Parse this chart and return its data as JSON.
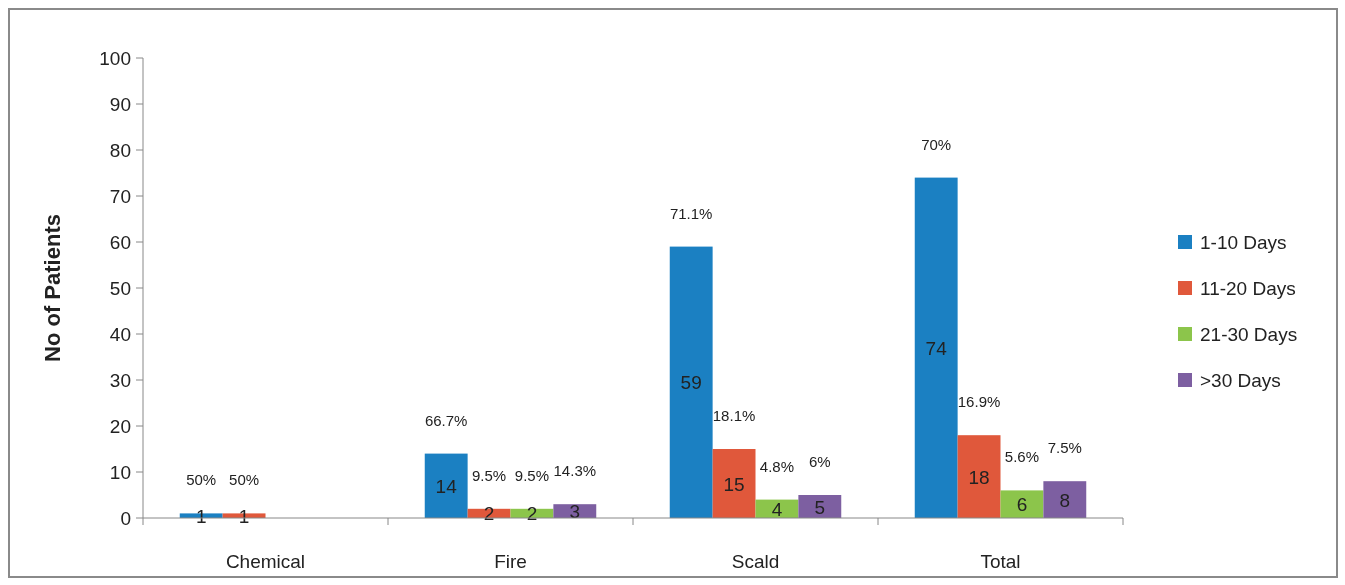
{
  "chart_data": {
    "type": "bar",
    "ylabel": "No of Patients",
    "categories": [
      "Chemical",
      "Fire",
      "Scald",
      "Total"
    ],
    "series": [
      {
        "name": "1-10 Days",
        "color": "#1b80c2",
        "values": [
          1,
          14,
          59,
          74
        ]
      },
      {
        "name": "11-20 Days",
        "color": "#e0583b",
        "values": [
          1,
          2,
          15,
          18
        ]
      },
      {
        "name": "21-30 Days",
        "color": "#8cc54b",
        "values": [
          null,
          2,
          4,
          6
        ]
      },
      {
        "name": ">30 Days",
        "color": "#7d5fa1",
        "values": [
          null,
          3,
          5,
          8
        ]
      }
    ],
    "ylim": [
      0,
      100
    ],
    "yticks": [
      0,
      10,
      20,
      30,
      40,
      50,
      60,
      70,
      80,
      90,
      100
    ],
    "grid": false,
    "legend": "right",
    "data_labels": true,
    "annotations": [
      "50%",
      "50%",
      "66.7%",
      "9.5%",
      "9.5%",
      "14.3%",
      "71.1%",
      "18.1%",
      "4.8%",
      "6%",
      "70%",
      "16.9%",
      "5.6%",
      "7.5%"
    ]
  }
}
